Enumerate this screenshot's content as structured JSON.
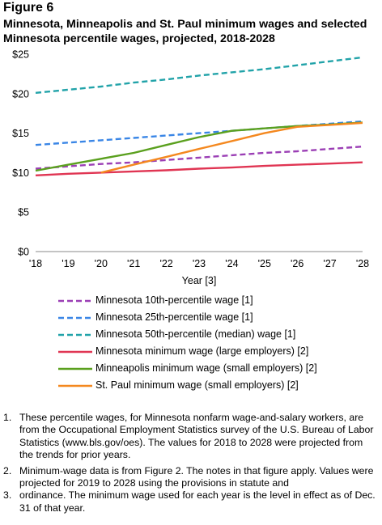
{
  "figure_label": "Figure 6",
  "chart_data": {
    "type": "line",
    "title": "Minnesota, Minneapolis and St. Paul minimum wages and selected Minnesota percentile wages, projected, 2018-2028",
    "xlabel": "Year [3]",
    "ylabel": "",
    "categories": [
      "'18",
      "'19",
      "'20",
      "'21",
      "'22",
      "'23",
      "'24",
      "'25",
      "'26",
      "'27",
      "'28"
    ],
    "x": [
      2018,
      2019,
      2020,
      2021,
      2022,
      2023,
      2024,
      2025,
      2026,
      2027,
      2028
    ],
    "ylim": [
      0,
      25
    ],
    "yticks": [
      0,
      5,
      10,
      15,
      20,
      25
    ],
    "ytick_labels": [
      "$0",
      "$5",
      "$10",
      "$15",
      "$20",
      "$25"
    ],
    "grid": false,
    "legend_position": "bottom",
    "series": [
      {
        "name": "Minnesota 10th-percentile wage [1]",
        "color": "#9b3fb5",
        "dash": true,
        "values": [
          10.5,
          10.8,
          11.1,
          11.3,
          11.6,
          11.9,
          12.2,
          12.5,
          12.7,
          13.0,
          13.3
        ]
      },
      {
        "name": "Minnesota 25th-percentile wage [1]",
        "color": "#3a86e6",
        "dash": true,
        "values": [
          13.5,
          13.8,
          14.1,
          14.4,
          14.7,
          15.0,
          15.3,
          15.6,
          15.9,
          16.2,
          16.5
        ]
      },
      {
        "name": "Minnesota 50th-percentile (median) wage [1]",
        "color": "#22a3a9",
        "dash": true,
        "values": [
          20.1,
          20.5,
          20.9,
          21.4,
          21.8,
          22.3,
          22.7,
          23.1,
          23.6,
          24.1,
          24.6
        ]
      },
      {
        "name": "Minnesota minimum wage (large employers) [2]",
        "color": "#e03553",
        "dash": false,
        "values": [
          9.65,
          9.86,
          10.0,
          10.15,
          10.3,
          10.5,
          10.65,
          10.85,
          11.0,
          11.15,
          11.3
        ]
      },
      {
        "name": "Minneapolis minimum wage (small employers) [2]",
        "color": "#5aa01e",
        "dash": false,
        "values": [
          10.25,
          11.0,
          11.75,
          12.5,
          13.5,
          14.5,
          15.3,
          15.6,
          15.9,
          16.1,
          16.35
        ]
      },
      {
        "name": "St. Paul minimum wage (small employers) [2]",
        "color": "#f4881f",
        "dash": false,
        "values": [
          null,
          null,
          10.0,
          11.0,
          12.0,
          13.0,
          14.0,
          15.0,
          15.8,
          16.05,
          16.3
        ]
      }
    ]
  },
  "notes": [
    {
      "num": "1.",
      "text": "These percentile wages, for Minnesota nonfarm wage-and-salary workers, are from the Occupational Employment Statistics survey of the U.S. Bureau of Labor Statistics (www.bls.gov/oes). The values for 2018 to 2028 were projected from the trends for prior years."
    },
    {
      "num": "2.",
      "text": "Minimum-wage data is from Figure 2. The notes in that figure apply. Values were projected for 2019 to 2028 using the provisions in statute and"
    },
    {
      "num": "3.",
      "text": "ordinance. The minimum wage used for each year is the level in effect as of Dec. 31 of that year."
    }
  ]
}
